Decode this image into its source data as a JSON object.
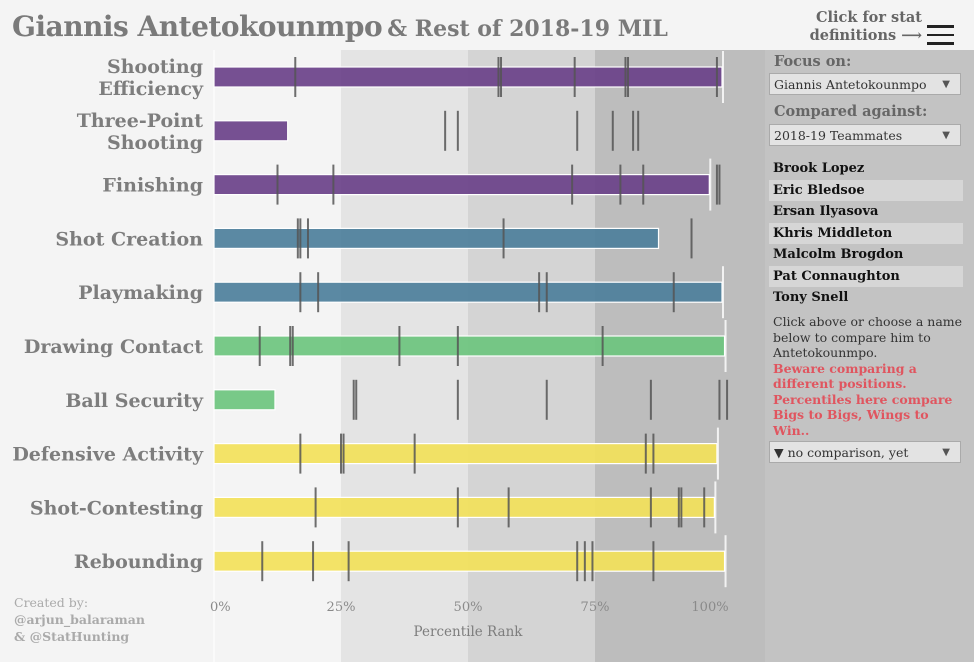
{
  "header": {
    "title_main": "Giannis Antetokounmpo",
    "title_sub": "& Rest of 2018-19 MIL",
    "help_line1": "Click for stat",
    "help_line2": "definitions ⟶",
    "menu_icon": "hamburger-menu-icon"
  },
  "sidebar": {
    "focus_label": "Focus on:",
    "focus_value": "Giannis Antetokounmpo",
    "compare_label": "Compared against:",
    "compare_value": "2018-19 Teammates",
    "players": [
      "Brook Lopez",
      "Eric Bledsoe",
      "Ersan Ilyasova",
      "Khris Middleton",
      "Malcolm Brogdon",
      "Pat Connaughton",
      "Tony Snell"
    ],
    "note": "Click above or choose a name below to compare him to Antetokounmpo.",
    "warning": "Beware comparing a different positions. Percentiles here compare Bigs to Bigs, Wings to Win..",
    "comparison_value": "▼ no comparison, yet",
    "dropdown_arrow": "▼"
  },
  "credit": {
    "line1": "Created by:",
    "line2": "@arjun_balaraman",
    "line3": "& @StatHunting"
  },
  "colors": {
    "purple": "#6a4189",
    "teal": "#4d7f9b",
    "green": "#6cc47e",
    "yellow": "#f2e15a",
    "tick": "#555555",
    "band0": "#f4f4f4",
    "band1": "#e4e4e4",
    "band2": "#d4d4d4",
    "band3": "#bdbdbd"
  },
  "chart_data": {
    "type": "bar",
    "orientation": "horizontal",
    "xlabel": "Percentile Rank",
    "xlim": [
      0,
      100
    ],
    "xticks": [
      "0%",
      "25%",
      "50%",
      "75%",
      "100%"
    ],
    "background_bands": [
      0,
      25,
      50,
      75,
      100
    ],
    "categories": [
      "Shooting Efficiency",
      "Three-Point Shooting",
      "Finishing",
      "Shot Creation",
      "Playmaking",
      "Drawing Contact",
      "Ball Security",
      "Defensive Activity",
      "Shot-Contesting",
      "Rebounding"
    ],
    "label_lines": [
      [
        "Shooting",
        "Efficiency"
      ],
      [
        "Three-Point",
        "Shooting"
      ],
      [
        "Finishing"
      ],
      [
        "Shot Creation"
      ],
      [
        "Playmaking"
      ],
      [
        "Drawing Contact"
      ],
      [
        "Ball Security"
      ],
      [
        "Defensive Activity"
      ],
      [
        "Shot-Contesting"
      ],
      [
        "Rebounding"
      ]
    ],
    "series": [
      {
        "name": "Giannis Antetokounmpo",
        "values": [
          100,
          14.5,
          97.5,
          87.5,
          100,
          100.5,
          12,
          99,
          98.5,
          100.5
        ]
      }
    ],
    "bar_color_groups": [
      "purple",
      "purple",
      "purple",
      "teal",
      "teal",
      "green",
      "green",
      "yellow",
      "yellow",
      "yellow"
    ],
    "teammate_ticks": [
      [
        16,
        56,
        56.5,
        71,
        81,
        81.5,
        99
      ],
      [
        45.5,
        48,
        71.5,
        78.5,
        82.5,
        83.5
      ],
      [
        12.5,
        23.5,
        70.5,
        80,
        84.5,
        99,
        99.5
      ],
      [
        16.5,
        17,
        18.5,
        57,
        94
      ],
      [
        17,
        20.5,
        64,
        65.5,
        90.5
      ],
      [
        9,
        15,
        15.5,
        36.5,
        48,
        76.5
      ],
      [
        27.5,
        28,
        48,
        65.5,
        86,
        99.5,
        101
      ],
      [
        17,
        25,
        25.5,
        39.5,
        85,
        86.5
      ],
      [
        20,
        48,
        58,
        86,
        91.5,
        92,
        96.5
      ],
      [
        9.5,
        19.5,
        26.5,
        71.5,
        73,
        74.5,
        86.5
      ]
    ]
  }
}
